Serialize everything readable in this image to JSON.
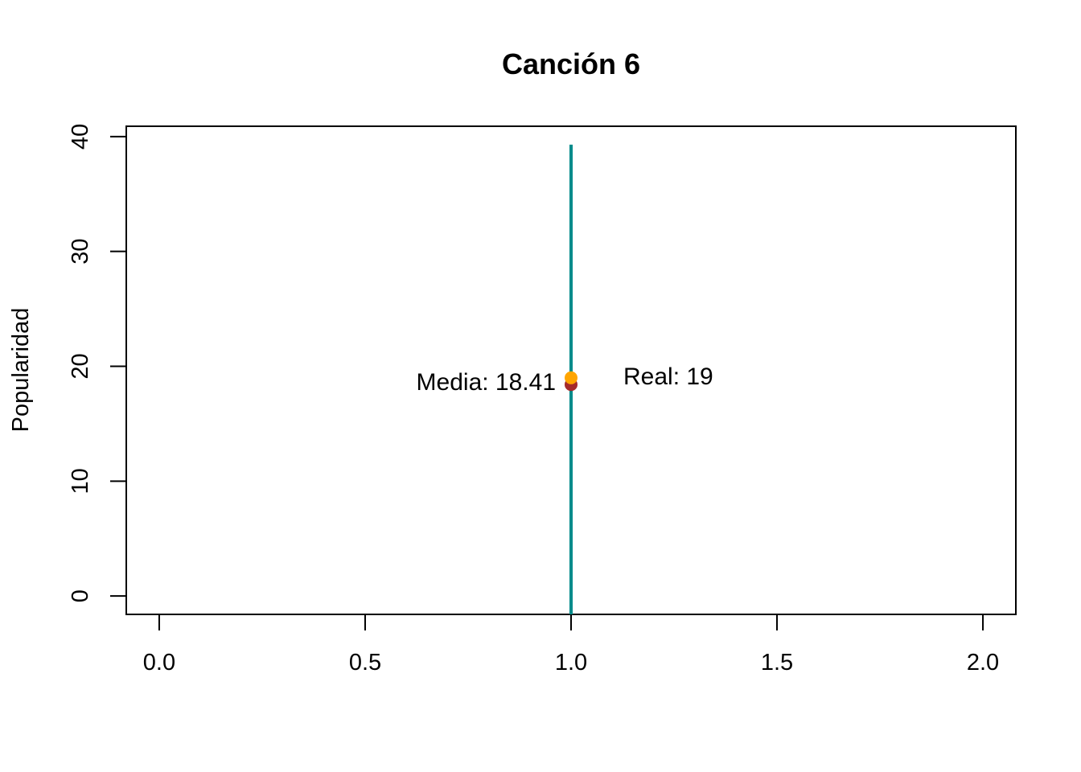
{
  "chart_data": {
    "type": "line",
    "title": "Canción 6",
    "xlabel": "",
    "ylabel": "Popularidad",
    "xlim": [
      -0.08,
      2.08
    ],
    "ylim": [
      -1.6,
      40.9
    ],
    "xticks": [
      "0.0",
      "0.5",
      "1.0",
      "1.5",
      "2.0"
    ],
    "xtick_values": [
      0.0,
      0.5,
      1.0,
      1.5,
      2.0
    ],
    "yticks": [
      "0",
      "10",
      "20",
      "30",
      "40"
    ],
    "ytick_values": [
      0,
      10,
      20,
      30,
      40
    ],
    "grid": false,
    "interval": {
      "x": 1.0,
      "y_low": -1.6,
      "y_high": 39.3,
      "color": "#008b8b"
    },
    "points": [
      {
        "name": "media",
        "x": 1.0,
        "y": 18.41,
        "color": "#a52a2a",
        "label": "Media: 18.41"
      },
      {
        "name": "real",
        "x": 1.0,
        "y": 19,
        "color": "#ffa500",
        "label": "Real: 19"
      }
    ]
  }
}
